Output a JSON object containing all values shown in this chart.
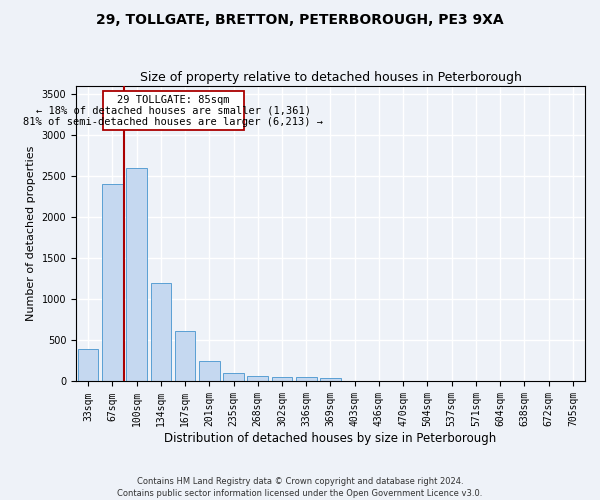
{
  "title": "29, TOLLGATE, BRETTON, PETERBOROUGH, PE3 9XA",
  "subtitle": "Size of property relative to detached houses in Peterborough",
  "xlabel": "Distribution of detached houses by size in Peterborough",
  "ylabel": "Number of detached properties",
  "footnote": "Contains HM Land Registry data © Crown copyright and database right 2024.\nContains public sector information licensed under the Open Government Licence v3.0.",
  "categories": [
    "33sqm",
    "67sqm",
    "100sqm",
    "134sqm",
    "167sqm",
    "201sqm",
    "235sqm",
    "268sqm",
    "302sqm",
    "336sqm",
    "369sqm",
    "403sqm",
    "436sqm",
    "470sqm",
    "504sqm",
    "537sqm",
    "571sqm",
    "604sqm",
    "638sqm",
    "672sqm",
    "705sqm"
  ],
  "values": [
    400,
    2400,
    2600,
    1200,
    620,
    250,
    100,
    65,
    55,
    50,
    45,
    0,
    0,
    0,
    0,
    0,
    0,
    0,
    0,
    0,
    0
  ],
  "bar_color": "#c5d8f0",
  "bar_edge_color": "#5a9fd4",
  "vline_x": 1.5,
  "vline_color": "#aa0000",
  "annotation_line1": "29 TOLLGATE: 85sqm",
  "annotation_line2": "← 18% of detached houses are smaller (1,361)",
  "annotation_line3": "81% of semi-detached houses are larger (6,213) →",
  "ylim": [
    0,
    3600
  ],
  "yticks": [
    0,
    500,
    1000,
    1500,
    2000,
    2500,
    3000,
    3500
  ],
  "bg_color": "#eef2f8",
  "plot_bg_color": "#eef2f8",
  "grid_color": "#ffffff",
  "title_fontsize": 10,
  "subtitle_fontsize": 9,
  "xlabel_fontsize": 8.5,
  "ylabel_fontsize": 8,
  "tick_fontsize": 7,
  "annotation_fontsize": 7.5
}
